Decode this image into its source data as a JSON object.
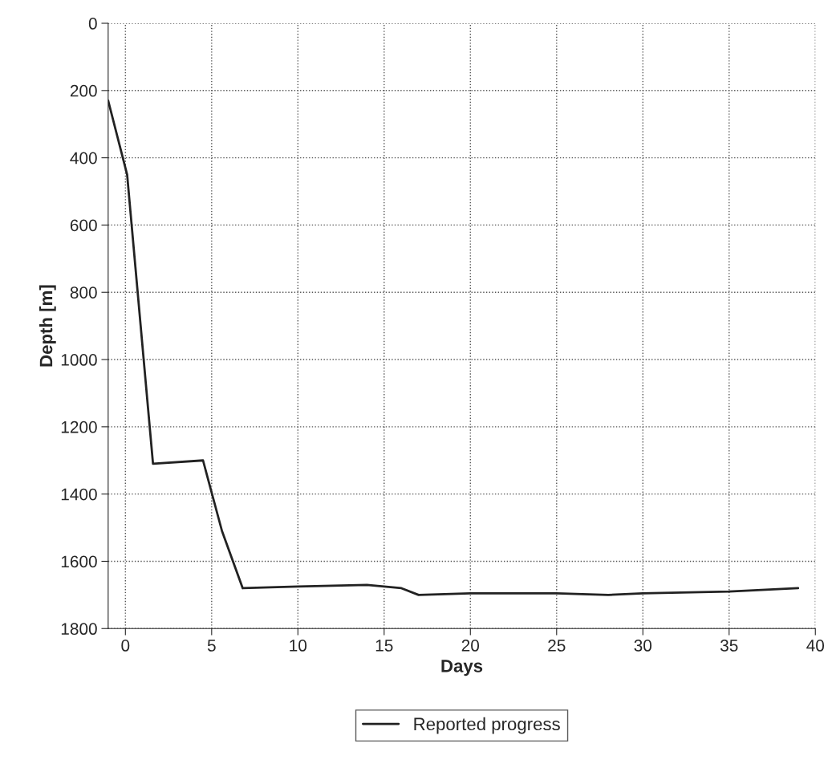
{
  "chart_data": {
    "type": "line",
    "xlabel": "Days",
    "ylabel": "Depth [m]",
    "series": [
      {
        "name": "Reported progress",
        "color": "#222222",
        "x": [
          -1,
          0.1,
          1.6,
          4.5,
          5.6,
          6.8,
          10,
          14,
          16,
          17,
          20,
          25,
          28,
          30,
          35,
          39
        ],
        "values": [
          230,
          450,
          1310,
          1300,
          1510,
          1680,
          1675,
          1670,
          1680,
          1700,
          1695,
          1695,
          1700,
          1695,
          1690,
          1680
        ]
      }
    ],
    "xlim": [
      -1,
      40
    ],
    "ylim": [
      1800,
      0
    ],
    "xticks": [
      0,
      5,
      10,
      15,
      20,
      25,
      30,
      35,
      40
    ],
    "yticks": [
      0,
      200,
      400,
      600,
      800,
      1000,
      1200,
      1400,
      1600,
      1800
    ],
    "grid": true,
    "legend": "bottom",
    "line_style": "solid",
    "marker": "none"
  }
}
